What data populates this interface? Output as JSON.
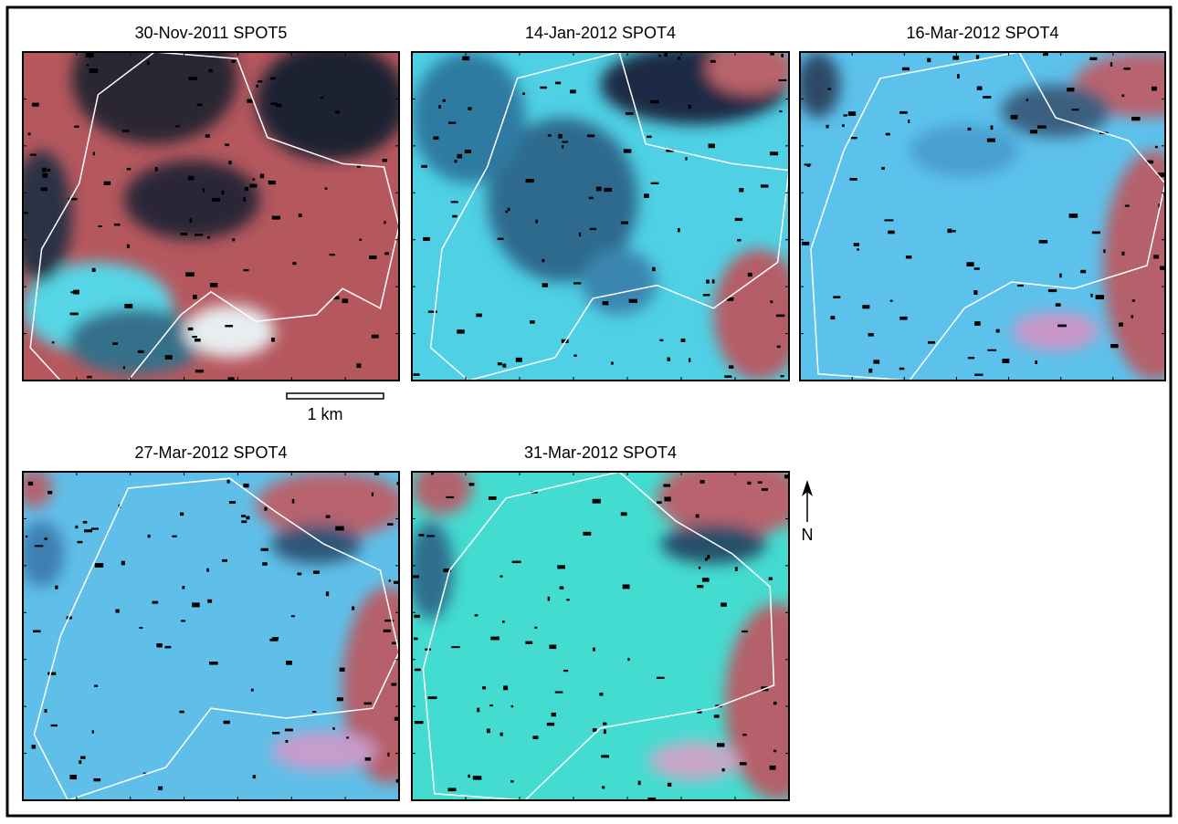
{
  "panels": [
    {
      "title": "30-Nov-2011 SPOT5"
    },
    {
      "title": "14-Jan-2012 SPOT4"
    },
    {
      "title": "16-Mar-2012 SPOT4"
    },
    {
      "title": "27-Mar-2012 SPOT4"
    },
    {
      "title": "31-Mar-2012 SPOT4"
    }
  ],
  "scale_bar": {
    "label": "1 km"
  },
  "north_arrow": {
    "label": "N"
  }
}
